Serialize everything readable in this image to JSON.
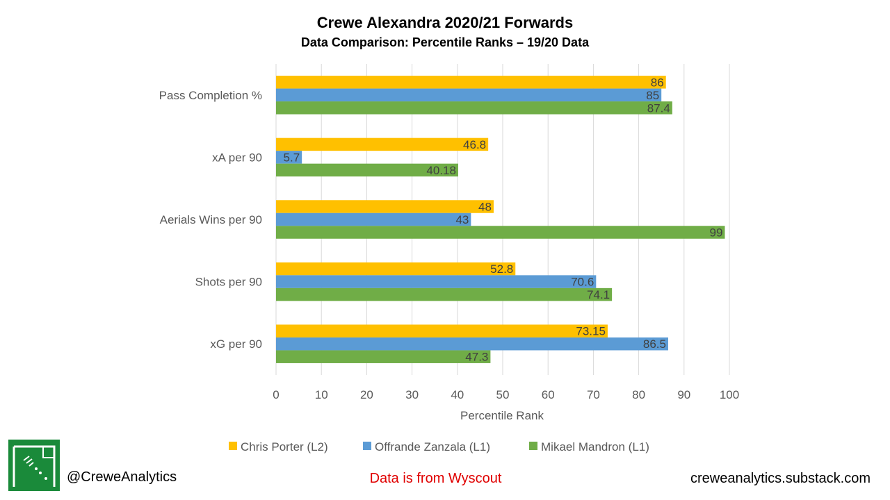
{
  "footer": {
    "handle": "@CreweAnalytics",
    "source": "Data is from Wyscout",
    "site": "creweanalytics.substack.com"
  },
  "logo": {
    "icon": "pitch-corner-icon",
    "color": "#1a8a3a"
  },
  "chart_data": {
    "type": "bar",
    "orientation": "horizontal",
    "title": "Crewe Alexandra 2020/21 Forwards",
    "subtitle": "Data Comparison: Percentile Ranks – 19/20 Data",
    "xlabel": "Percentile Rank",
    "ylabel": "",
    "xlim": [
      0,
      100
    ],
    "xticks": [
      0,
      10,
      20,
      30,
      40,
      50,
      60,
      70,
      80,
      90,
      100
    ],
    "grid": true,
    "legend_position": "bottom",
    "categories": [
      "Pass Completion %",
      "xA per 90",
      "Aerials Wins per 90",
      "Shots per 90",
      "xG per 90"
    ],
    "series": [
      {
        "name": "Chris Porter (L2)",
        "color": "#ffc000",
        "values": [
          86,
          46.8,
          48,
          52.8,
          73.15
        ],
        "labels": [
          "86",
          "46.8",
          "48",
          "52.8",
          "73.15"
        ]
      },
      {
        "name": "Offrande Zanzala (L1)",
        "color": "#5b9bd5",
        "values": [
          85,
          5.7,
          43,
          70.6,
          86.5
        ],
        "labels": [
          "85",
          "5.7",
          "43",
          "70.6",
          "86.5"
        ]
      },
      {
        "name": "Mikael Mandron (L1)",
        "color": "#70ad47",
        "values": [
          87.4,
          40.18,
          99,
          74.1,
          47.3
        ],
        "labels": [
          "87.4",
          "40.18",
          "99",
          "74.1",
          "47.3"
        ]
      }
    ]
  }
}
